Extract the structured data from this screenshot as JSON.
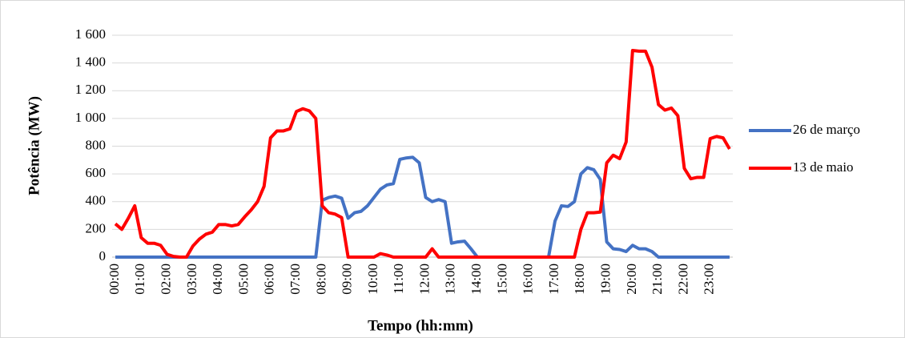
{
  "chart_data": {
    "type": "line",
    "x_label": "Tempo (hh:mm)",
    "y_label": "Potência (MW)",
    "categories": [
      "00:00",
      null,
      null,
      null,
      "01:00",
      null,
      null,
      null,
      "02:00",
      null,
      null,
      null,
      "03:00",
      null,
      null,
      null,
      "04:00",
      null,
      null,
      null,
      "05:00",
      null,
      null,
      null,
      "06:00",
      null,
      null,
      null,
      "07:00",
      null,
      null,
      null,
      "08:00",
      null,
      null,
      null,
      "09:00",
      null,
      null,
      null,
      "10:00",
      null,
      null,
      null,
      "11:00",
      null,
      null,
      null,
      "12:00",
      null,
      null,
      null,
      "13:00",
      null,
      null,
      null,
      "14:00",
      null,
      null,
      null,
      "15:00",
      null,
      null,
      null,
      "16:00",
      null,
      null,
      null,
      "17:00",
      null,
      null,
      null,
      "18:00",
      null,
      null,
      null,
      "19:00",
      null,
      null,
      null,
      "20:00",
      null,
      null,
      null,
      "21:00",
      null,
      null,
      null,
      "22:00",
      null,
      null,
      null,
      "23:00",
      null,
      null,
      null
    ],
    "series": [
      {
        "name": "26 de março",
        "color": "#4472c4",
        "values": [
          0,
          0,
          0,
          0,
          0,
          0,
          0,
          0,
          0,
          0,
          0,
          0,
          0,
          0,
          0,
          0,
          0,
          0,
          0,
          0,
          0,
          0,
          0,
          0,
          0,
          0,
          0,
          0,
          0,
          0,
          0,
          0,
          410,
          430,
          440,
          425,
          280,
          320,
          330,
          370,
          430,
          490,
          520,
          530,
          705,
          715,
          720,
          680,
          430,
          400,
          415,
          400,
          100,
          110,
          115,
          60,
          0,
          0,
          0,
          0,
          0,
          0,
          0,
          0,
          0,
          0,
          0,
          0,
          260,
          370,
          365,
          400,
          600,
          645,
          630,
          560,
          110,
          60,
          55,
          40,
          85,
          60,
          60,
          40,
          0,
          0,
          0,
          0,
          0,
          0,
          0,
          0,
          0,
          0,
          0,
          0
        ]
      },
      {
        "name": "13 de maio",
        "color": "#ff0000",
        "values": [
          240,
          200,
          280,
          370,
          140,
          100,
          100,
          85,
          20,
          5,
          0,
          0,
          80,
          130,
          165,
          180,
          235,
          235,
          225,
          235,
          290,
          340,
          400,
          510,
          860,
          910,
          910,
          925,
          1050,
          1070,
          1055,
          1000,
          370,
          320,
          310,
          285,
          0,
          0,
          0,
          0,
          0,
          25,
          15,
          0,
          0,
          0,
          0,
          0,
          0,
          60,
          0,
          0,
          0,
          0,
          0,
          0,
          0,
          0,
          0,
          0,
          0,
          0,
          0,
          0,
          0,
          0,
          0,
          0,
          0,
          0,
          0,
          0,
          200,
          320,
          320,
          325,
          680,
          735,
          710,
          830,
          1490,
          1485,
          1485,
          1370,
          1100,
          1060,
          1075,
          1020,
          640,
          565,
          575,
          575,
          855,
          870,
          860,
          780
        ]
      }
    ],
    "ylim": [
      0,
      1600
    ],
    "yticks": [
      0,
      200,
      400,
      600,
      800,
      {
        "value": 1000,
        "label": "1 000"
      },
      {
        "value": 1200,
        "label": "1 200"
      },
      {
        "value": 1400,
        "label": "1 400"
      },
      {
        "value": 1600,
        "label": "1 600"
      }
    ],
    "grid": true,
    "legend": "right"
  }
}
